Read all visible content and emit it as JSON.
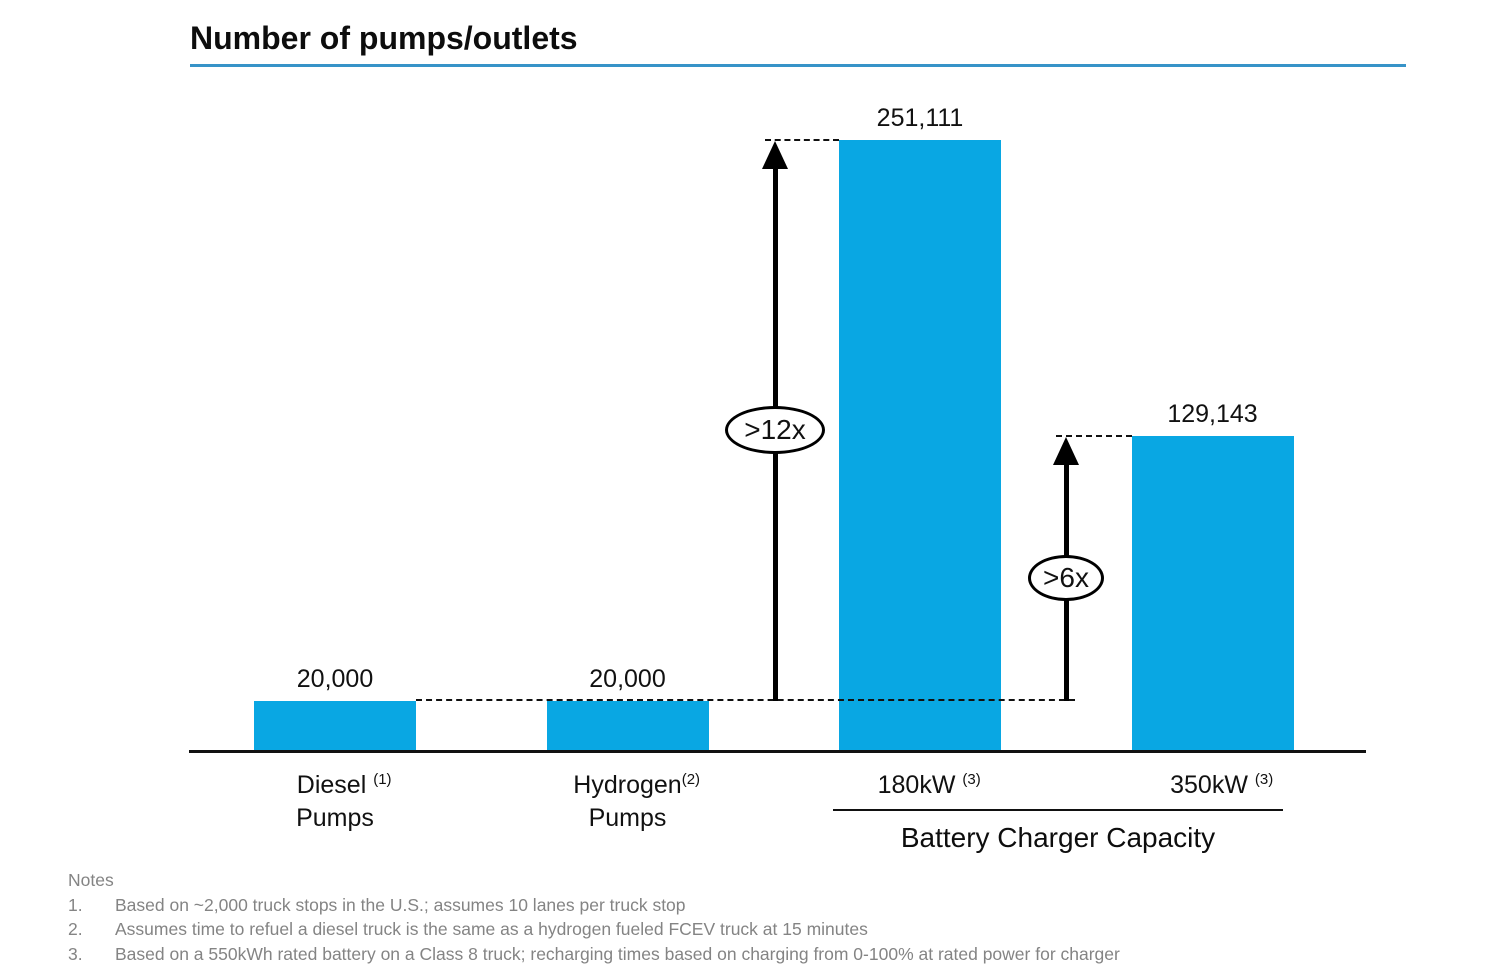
{
  "title": "Number of pumps/outlets",
  "accent_colors": {
    "bar": "#09a7e3",
    "title_underline": "#3793c8",
    "annotation_line": "#000000",
    "notes_text": "#848484"
  },
  "chart_data": {
    "type": "bar",
    "title": "Number of pumps/outlets",
    "categories": [
      "Diesel Pumps",
      "Hydrogen Pumps",
      "180kW",
      "350kW"
    ],
    "category_labels": [
      {
        "main": "Diesel ",
        "sup": "(1)",
        "line2": "Pumps"
      },
      {
        "main": "Hydrogen",
        "sup": "(2)",
        "line2": "Pumps"
      },
      {
        "main": "180kW ",
        "sup": "(3)",
        "line2": ""
      },
      {
        "main": "350kW ",
        "sup": "(3)",
        "line2": ""
      }
    ],
    "values": [
      20000,
      20000,
      251111,
      129143
    ],
    "value_labels": [
      "20,000",
      "20,000",
      "251,111",
      "129,143"
    ],
    "ylim": [
      0,
      251111
    ],
    "grid": false,
    "legend": "none",
    "xlabel": "",
    "ylabel": "",
    "group_label": "Battery Charger Capacity",
    "group_members": [
      "180kW",
      "350kW"
    ],
    "annotations": [
      {
        "label": ">12x",
        "from_value": 20000,
        "to_category_index": 2
      },
      {
        "label": ">6x",
        "from_value": 20000,
        "to_category_index": 3
      }
    ]
  },
  "notes": {
    "heading": "Notes",
    "items": [
      {
        "num": "1.",
        "text": "Based on ~2,000 truck stops in the U.S.; assumes 10 lanes per truck stop"
      },
      {
        "num": "2.",
        "text": "Assumes time to refuel a diesel truck is the same as a hydrogen fueled FCEV truck at 15 minutes"
      },
      {
        "num": "3.",
        "text": "Based on a 550kWh rated battery on a Class 8 truck; recharging times based on charging from 0-100% at rated power for charger"
      }
    ]
  }
}
